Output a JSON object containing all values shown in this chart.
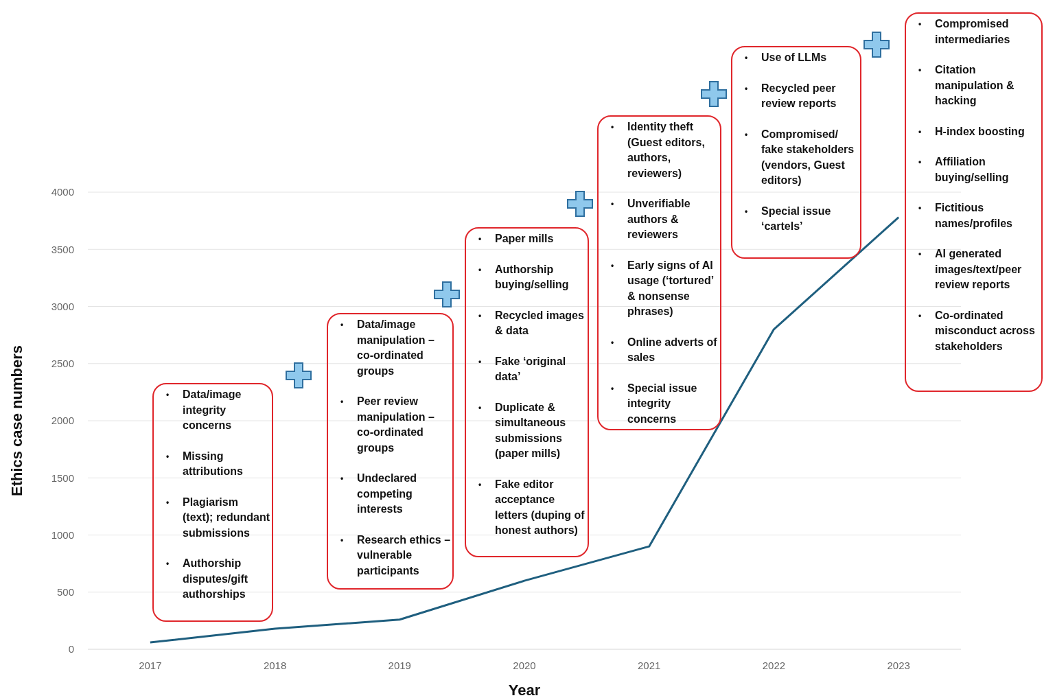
{
  "chart_data": {
    "type": "line",
    "xlabel": "Year",
    "ylabel": "Ethics case numbers",
    "x": [
      2017,
      2018,
      2019,
      2020,
      2021,
      2022,
      2023
    ],
    "series": [
      {
        "color": "#1f5f7f",
        "values": [
          60,
          180,
          260,
          600,
          900,
          2800,
          3780
        ]
      }
    ],
    "xlim": [
      2016.5,
      2023.5
    ],
    "xticks": [
      2017,
      2018,
      2019,
      2020,
      2021,
      2022,
      2023
    ],
    "ylim": [
      0,
      4000
    ],
    "yticks": [
      0,
      500,
      1000,
      1500,
      2000,
      2500,
      3000,
      3500,
      4000
    ],
    "grid": "y",
    "legend": false,
    "marker": "none",
    "line_style": "solid",
    "annotations": [
      "•\tData/image integrity concerns\n•\tMissing attributions\n•\tPlagiarism (text); redundant submissions\n•\tAuthorship disputes/gift authorships",
      "•\tData/image manipulation – co-ordinated groups\n•\tPeer review manipulation – co-ordinated groups\n•\tUndeclared competing interests\n•\tResearch ethics – vulnerable participants",
      "•\tPaper mills\n•\tAuthorship buying/selling\n•\tRecycled images & data\n•\tFake ‘original data’\n•\tDuplicate & simultaneous submissions (paper mills)\n•\tFake editor acceptance letters (duping of honest authors)",
      "•\tIdentity theft (Guest editors, authors, reviewers)\n•\tUnverifiable authors & reviewers\n•\tEarly signs of AI usage (‘tortured’ & nonsense phrases)\n•\tOnline adverts of sales\n•\tSpecial issue integrity concerns",
      "•\tUse of LLMs\n•\tRecycled peer review reports\n•\tCompromised/ fake stakeholders (vendors, Guest editors)\n•\tSpecial issue ‘cartels’",
      "•\tCompromised intermediaries\n•\tCitation manipulation & hacking\n•\tH-index boosting\n•\tAffiliation buying/selling\n•\tFictitious names/profiles\n•\tAI generated images/text/peer review reports\n•\tCo-ordinated misconduct across stakeholders"
    ]
  }
}
